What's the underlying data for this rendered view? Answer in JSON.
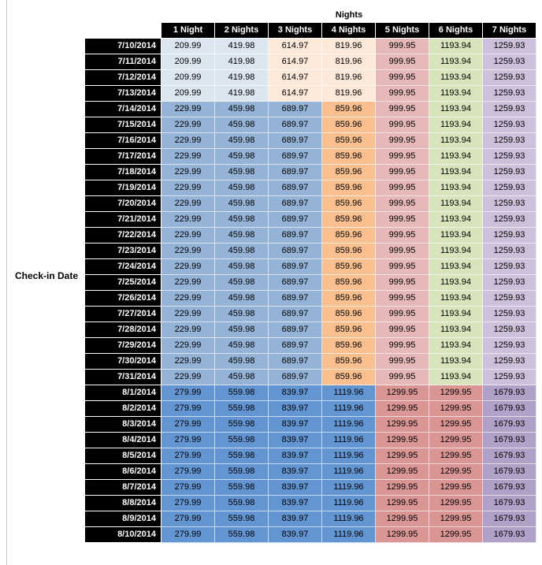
{
  "chart_data": {
    "type": "table",
    "title": "Nights",
    "row_axis_label": "Check-in Date",
    "columns": [
      "1 Night",
      "2 Nights",
      "3 Nights",
      "4 Nights",
      "5 Nights",
      "6 Nights",
      "7 Nights"
    ],
    "header_bg": "#000000",
    "header_text_color": "#FFFFFF",
    "band_colors": {
      "early": [
        "#DCE6F1",
        "#DCE6F1",
        "#FDE9D9",
        "#FDE9D9",
        "#E6B9B8",
        "#D8E4BC",
        "#CCC0DA"
      ],
      "mid": [
        "#95B3D7",
        "#95B3D7",
        "#95B3D7",
        "#FABF8F",
        "#E6B9B8",
        "#D8E4BC",
        "#CCC0DA"
      ],
      "late": [
        "#6295D2",
        "#6295D2",
        "#6295D2",
        "#6295D2",
        "#D99694",
        "#D99694",
        "#B1A0C7"
      ]
    },
    "rows": [
      {
        "date": "7/10/2014",
        "band": "early",
        "values": [
          "209.99",
          "419.98",
          "614.97",
          "819.96",
          "999.95",
          "1193.94",
          "1259.93"
        ]
      },
      {
        "date": "7/11/2014",
        "band": "early",
        "values": [
          "209.99",
          "419.98",
          "614.97",
          "819.96",
          "999.95",
          "1193.94",
          "1259.93"
        ]
      },
      {
        "date": "7/12/2014",
        "band": "early",
        "values": [
          "209.99",
          "419.98",
          "614.97",
          "819.96",
          "999.95",
          "1193.94",
          "1259.93"
        ]
      },
      {
        "date": "7/13/2014",
        "band": "early",
        "values": [
          "209.99",
          "419.98",
          "614.97",
          "819.96",
          "999.95",
          "1193.94",
          "1259.93"
        ]
      },
      {
        "date": "7/14/2014",
        "band": "mid",
        "values": [
          "229.99",
          "459.98",
          "689.97",
          "859.96",
          "999.95",
          "1193.94",
          "1259.93"
        ]
      },
      {
        "date": "7/15/2014",
        "band": "mid",
        "values": [
          "229.99",
          "459.98",
          "689.97",
          "859.96",
          "999.95",
          "1193.94",
          "1259.93"
        ]
      },
      {
        "date": "7/16/2014",
        "band": "mid",
        "values": [
          "229.99",
          "459.98",
          "689.97",
          "859.96",
          "999.95",
          "1193.94",
          "1259.93"
        ]
      },
      {
        "date": "7/17/2014",
        "band": "mid",
        "values": [
          "229.99",
          "459.98",
          "689.97",
          "859.96",
          "999.95",
          "1193.94",
          "1259.93"
        ]
      },
      {
        "date": "7/18/2014",
        "band": "mid",
        "values": [
          "229.99",
          "459.98",
          "689.97",
          "859.96",
          "999.95",
          "1193.94",
          "1259.93"
        ]
      },
      {
        "date": "7/19/2014",
        "band": "mid",
        "values": [
          "229.99",
          "459.98",
          "689.97",
          "859.96",
          "999.95",
          "1193.94",
          "1259.93"
        ]
      },
      {
        "date": "7/20/2014",
        "band": "mid",
        "values": [
          "229.99",
          "459.98",
          "689.97",
          "859.96",
          "999.95",
          "1193.94",
          "1259.93"
        ]
      },
      {
        "date": "7/21/2014",
        "band": "mid",
        "values": [
          "229.99",
          "459.98",
          "689.97",
          "859.96",
          "999.95",
          "1193.94",
          "1259.93"
        ]
      },
      {
        "date": "7/22/2014",
        "band": "mid",
        "values": [
          "229.99",
          "459.98",
          "689.97",
          "859.96",
          "999.95",
          "1193.94",
          "1259.93"
        ]
      },
      {
        "date": "7/23/2014",
        "band": "mid",
        "values": [
          "229.99",
          "459.98",
          "689.97",
          "859.96",
          "999.95",
          "1193.94",
          "1259.93"
        ]
      },
      {
        "date": "7/24/2014",
        "band": "mid",
        "values": [
          "229.99",
          "459.98",
          "689.97",
          "859.96",
          "999.95",
          "1193.94",
          "1259.93"
        ]
      },
      {
        "date": "7/25/2014",
        "band": "mid",
        "values": [
          "229.99",
          "459.98",
          "689.97",
          "859.96",
          "999.95",
          "1193.94",
          "1259.93"
        ]
      },
      {
        "date": "7/26/2014",
        "band": "mid",
        "values": [
          "229.99",
          "459.98",
          "689.97",
          "859.96",
          "999.95",
          "1193.94",
          "1259.93"
        ]
      },
      {
        "date": "7/27/2014",
        "band": "mid",
        "values": [
          "229.99",
          "459.98",
          "689.97",
          "859.96",
          "999.95",
          "1193.94",
          "1259.93"
        ]
      },
      {
        "date": "7/28/2014",
        "band": "mid",
        "values": [
          "229.99",
          "459.98",
          "689.97",
          "859.96",
          "999.95",
          "1193.94",
          "1259.93"
        ]
      },
      {
        "date": "7/29/2014",
        "band": "mid",
        "values": [
          "229.99",
          "459.98",
          "689.97",
          "859.96",
          "999.95",
          "1193.94",
          "1259.93"
        ]
      },
      {
        "date": "7/30/2014",
        "band": "mid",
        "values": [
          "229.99",
          "459.98",
          "689.97",
          "859.96",
          "999.95",
          "1193.94",
          "1259.93"
        ]
      },
      {
        "date": "7/31/2014",
        "band": "mid",
        "values": [
          "229.99",
          "459.98",
          "689.97",
          "859.96",
          "999.95",
          "1193.94",
          "1259.93"
        ]
      },
      {
        "date": "8/1/2014",
        "band": "late",
        "values": [
          "279.99",
          "559.98",
          "839.97",
          "1119.96",
          "1299.95",
          "1299.95",
          "1679.93"
        ]
      },
      {
        "date": "8/2/2014",
        "band": "late",
        "values": [
          "279.99",
          "559.98",
          "839.97",
          "1119.96",
          "1299.95",
          "1299.95",
          "1679.93"
        ]
      },
      {
        "date": "8/3/2014",
        "band": "late",
        "values": [
          "279.99",
          "559.98",
          "839.97",
          "1119.96",
          "1299.95",
          "1299.95",
          "1679.93"
        ]
      },
      {
        "date": "8/4/2014",
        "band": "late",
        "values": [
          "279.99",
          "559.98",
          "839.97",
          "1119.96",
          "1299.95",
          "1299.95",
          "1679.93"
        ]
      },
      {
        "date": "8/5/2014",
        "band": "late",
        "values": [
          "279.99",
          "559.98",
          "839.97",
          "1119.96",
          "1299.95",
          "1299.95",
          "1679.93"
        ]
      },
      {
        "date": "8/6/2014",
        "band": "late",
        "values": [
          "279.99",
          "559.98",
          "839.97",
          "1119.96",
          "1299.95",
          "1299.95",
          "1679.93"
        ]
      },
      {
        "date": "8/7/2014",
        "band": "late",
        "values": [
          "279.99",
          "559.98",
          "839.97",
          "1119.96",
          "1299.95",
          "1299.95",
          "1679.93"
        ]
      },
      {
        "date": "8/8/2014",
        "band": "late",
        "values": [
          "279.99",
          "559.98",
          "839.97",
          "1119.96",
          "1299.95",
          "1299.95",
          "1679.93"
        ]
      },
      {
        "date": "8/9/2014",
        "band": "late",
        "values": [
          "279.99",
          "559.98",
          "839.97",
          "1119.96",
          "1299.95",
          "1299.95",
          "1679.93"
        ]
      },
      {
        "date": "8/10/2014",
        "band": "late",
        "values": [
          "279.99",
          "559.98",
          "839.97",
          "1119.96",
          "1299.95",
          "1299.95",
          "1679.93"
        ]
      }
    ]
  }
}
